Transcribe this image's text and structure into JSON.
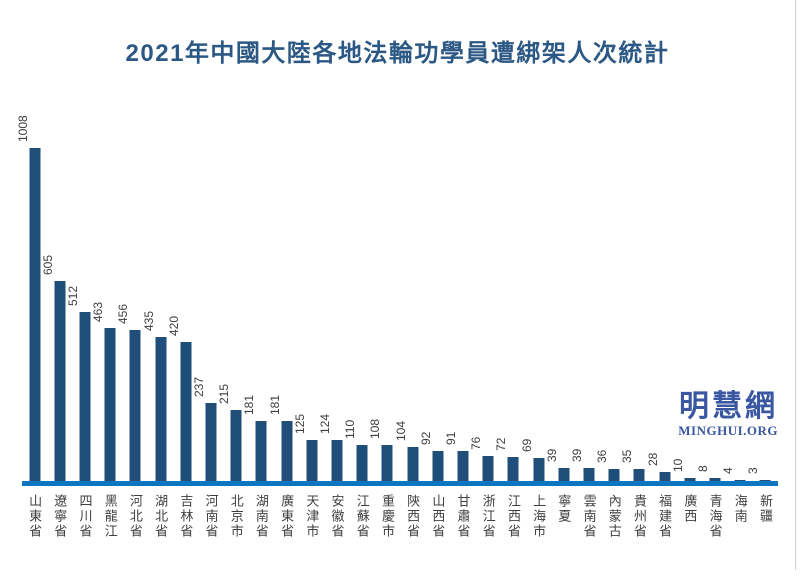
{
  "title": "2021年中國大陸各地法輪功學員遭綁架人次統計",
  "logo": {
    "cjk": "明慧網",
    "latin": "MINGHUI.ORG"
  },
  "colors": {
    "bar": "#1f4e79",
    "axis_line": "#0c76c1",
    "title": "#2b5884",
    "logo": "#3a57a2",
    "labels": "#404040"
  },
  "chart_data": {
    "type": "bar",
    "title": "2021年中國大陸各地法輪功學員遭綁架人次統計",
    "categories": [
      "山東省",
      "遼寧省",
      "四川省",
      "黑龍江",
      "河北省",
      "湖北省",
      "吉林省",
      "河南省",
      "北京市",
      "湖南省",
      "廣東省",
      "天津市",
      "安徽省",
      "江蘇省",
      "重慶市",
      "陝西省",
      "山西省",
      "甘肅省",
      "浙江省",
      "江西省",
      "上海市",
      "寧夏",
      "雲南省",
      "內蒙古",
      "貴州省",
      "福建省",
      "廣西",
      "青海省",
      "海南",
      "新疆"
    ],
    "values": [
      1008,
      605,
      512,
      463,
      456,
      435,
      420,
      237,
      215,
      181,
      181,
      125,
      124,
      110,
      108,
      104,
      92,
      91,
      76,
      72,
      69,
      39,
      39,
      36,
      35,
      28,
      10,
      8,
      4,
      3
    ],
    "xlabel": "",
    "ylabel": "",
    "ylim": [
      0,
      1008
    ],
    "grid": false,
    "legend": false,
    "value_labels": "rotated-vertical-above-bars",
    "category_labels": "vertical-upright-cjk"
  }
}
